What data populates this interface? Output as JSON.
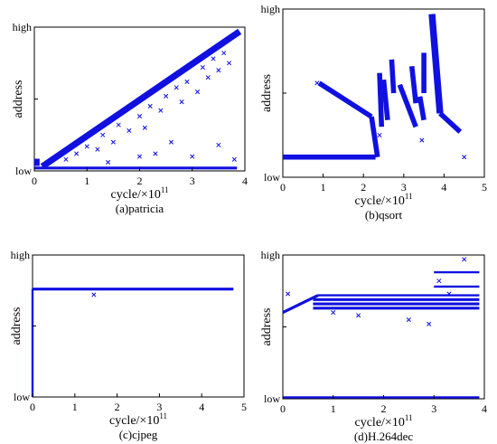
{
  "chart_data": [
    {
      "type": "scatter",
      "caption": "(a)patricia",
      "xlabel": "cycle/×10",
      "xlabel_exponent": "11",
      "ylabel": "address",
      "y_tick_labels": [
        "low",
        "high"
      ],
      "x_ticks": [
        "0",
        "1",
        "2",
        "3",
        "4"
      ],
      "xlim": [
        0,
        4
      ],
      "ylim": [
        0,
        1
      ],
      "grid": false,
      "marker": "x",
      "color": "#1010e0",
      "segments": [
        {
          "x": [
            0.0,
            3.85
          ],
          "y": [
            0.02,
            0.02
          ],
          "width": 0.02
        },
        {
          "x": [
            0.15,
            3.9
          ],
          "y": [
            0.03,
            0.97
          ],
          "width": 0.045
        },
        {
          "x": [
            0.0,
            0.1
          ],
          "y": [
            0.06,
            0.06
          ],
          "width": 0.05
        }
      ],
      "points": [
        {
          "x": 0.6,
          "y": 0.08
        },
        {
          "x": 0.8,
          "y": 0.12
        },
        {
          "x": 1.0,
          "y": 0.17
        },
        {
          "x": 1.2,
          "y": 0.15
        },
        {
          "x": 1.3,
          "y": 0.25
        },
        {
          "x": 1.5,
          "y": 0.2
        },
        {
          "x": 1.6,
          "y": 0.32
        },
        {
          "x": 1.8,
          "y": 0.28
        },
        {
          "x": 2.0,
          "y": 0.38
        },
        {
          "x": 2.1,
          "y": 0.3
        },
        {
          "x": 2.2,
          "y": 0.45
        },
        {
          "x": 2.3,
          "y": 0.12
        },
        {
          "x": 2.4,
          "y": 0.42
        },
        {
          "x": 2.5,
          "y": 0.52
        },
        {
          "x": 2.6,
          "y": 0.2
        },
        {
          "x": 2.7,
          "y": 0.58
        },
        {
          "x": 2.8,
          "y": 0.48
        },
        {
          "x": 2.9,
          "y": 0.62
        },
        {
          "x": 3.0,
          "y": 0.1
        },
        {
          "x": 3.1,
          "y": 0.55
        },
        {
          "x": 3.2,
          "y": 0.72
        },
        {
          "x": 3.3,
          "y": 0.65
        },
        {
          "x": 3.4,
          "y": 0.78
        },
        {
          "x": 3.5,
          "y": 0.7
        },
        {
          "x": 3.6,
          "y": 0.82
        },
        {
          "x": 3.7,
          "y": 0.75
        },
        {
          "x": 3.5,
          "y": 0.18
        },
        {
          "x": 2.0,
          "y": 0.1
        },
        {
          "x": 1.4,
          "y": 0.06
        },
        {
          "x": 3.8,
          "y": 0.08
        }
      ]
    },
    {
      "type": "scatter",
      "caption": "(b)qsort",
      "xlabel": "cycle/×10",
      "xlabel_exponent": "11",
      "ylabel": "address",
      "y_tick_labels": [
        "low",
        "high"
      ],
      "x_ticks": [
        "0",
        "1",
        "2",
        "3",
        "4",
        "5"
      ],
      "xlim": [
        0,
        5
      ],
      "ylim": [
        0,
        1
      ],
      "grid": false,
      "marker": "x",
      "color": "#1010e0",
      "segments": [
        {
          "x": [
            0.0,
            2.3
          ],
          "y": [
            0.12,
            0.12
          ],
          "width": 0.03
        },
        {
          "x": [
            0.9,
            2.2
          ],
          "y": [
            0.56,
            0.36
          ],
          "width": 0.03
        },
        {
          "x": [
            2.2,
            2.35
          ],
          "y": [
            0.36,
            0.12
          ],
          "width": 0.03
        },
        {
          "x": [
            2.4,
            2.45
          ],
          "y": [
            0.62,
            0.3
          ],
          "width": 0.03
        },
        {
          "x": [
            2.5,
            2.6
          ],
          "y": [
            0.58,
            0.34
          ],
          "width": 0.03
        },
        {
          "x": [
            2.7,
            2.75
          ],
          "y": [
            0.7,
            0.5
          ],
          "width": 0.03
        },
        {
          "x": [
            2.9,
            3.3
          ],
          "y": [
            0.55,
            0.3
          ],
          "width": 0.03
        },
        {
          "x": [
            3.2,
            3.3
          ],
          "y": [
            0.66,
            0.44
          ],
          "width": 0.03
        },
        {
          "x": [
            3.5,
            3.5
          ],
          "y": [
            0.74,
            0.5
          ],
          "width": 0.03
        },
        {
          "x": [
            3.7,
            3.9
          ],
          "y": [
            0.97,
            0.38
          ],
          "width": 0.04
        },
        {
          "x": [
            3.9,
            4.4
          ],
          "y": [
            0.38,
            0.27
          ],
          "width": 0.03
        },
        {
          "x": [
            3.4,
            3.5
          ],
          "y": [
            0.48,
            0.34
          ],
          "width": 0.03
        }
      ],
      "points": [
        {
          "x": 0.85,
          "y": 0.56
        },
        {
          "x": 2.4,
          "y": 0.25
        },
        {
          "x": 3.45,
          "y": 0.22
        },
        {
          "x": 4.5,
          "y": 0.12
        },
        {
          "x": 2.0,
          "y": 0.12
        }
      ]
    },
    {
      "type": "scatter",
      "caption": "(c)cjpeg",
      "xlabel": "cycle/×10",
      "xlabel_exponent": "11",
      "ylabel": "address",
      "y_tick_labels": [
        "low",
        "high"
      ],
      "x_ticks": [
        "0",
        "1",
        "2",
        "3",
        "4",
        "5"
      ],
      "xlim": [
        0,
        5
      ],
      "ylim": [
        0,
        1
      ],
      "grid": false,
      "marker": "x",
      "color": "#1010e0",
      "segments": [
        {
          "x": [
            0.0,
            0.0
          ],
          "y": [
            0.0,
            0.76
          ],
          "width": 0.015
        },
        {
          "x": [
            0.0,
            4.75
          ],
          "y": [
            0.76,
            0.76
          ],
          "width": 0.02
        }
      ],
      "points": [
        {
          "x": 1.45,
          "y": 0.72
        }
      ]
    },
    {
      "type": "scatter",
      "caption": "(d)H.264dec",
      "xlabel": "cycle/×10",
      "xlabel_exponent": "11",
      "ylabel": "address",
      "y_tick_labels": [
        "low",
        "high"
      ],
      "x_ticks": [
        "0",
        "1",
        "2",
        "3",
        "4"
      ],
      "xlim": [
        0,
        4
      ],
      "ylim": [
        0,
        1
      ],
      "grid": false,
      "marker": "x",
      "color": "#1010e0",
      "segments": [
        {
          "x": [
            0.0,
            0.7
          ],
          "y": [
            0.6,
            0.72
          ],
          "width": 0.02
        },
        {
          "x": [
            0.7,
            3.9
          ],
          "y": [
            0.72,
            0.72
          ],
          "width": 0.015
        },
        {
          "x": [
            0.6,
            3.9
          ],
          "y": [
            0.69,
            0.69
          ],
          "width": 0.02
        },
        {
          "x": [
            0.6,
            3.9
          ],
          "y": [
            0.66,
            0.66
          ],
          "width": 0.02
        },
        {
          "x": [
            0.6,
            3.9
          ],
          "y": [
            0.63,
            0.63
          ],
          "width": 0.02
        },
        {
          "x": [
            3.0,
            3.9
          ],
          "y": [
            0.88,
            0.88
          ],
          "width": 0.015
        },
        {
          "x": [
            3.0,
            3.9
          ],
          "y": [
            0.78,
            0.78
          ],
          "width": 0.015
        },
        {
          "x": [
            0.0,
            3.9
          ],
          "y": [
            0.01,
            0.01
          ],
          "width": 0.015
        }
      ],
      "points": [
        {
          "x": 0.1,
          "y": 0.73
        },
        {
          "x": 3.1,
          "y": 0.82
        },
        {
          "x": 3.3,
          "y": 0.73
        },
        {
          "x": 3.6,
          "y": 0.97
        },
        {
          "x": 2.9,
          "y": 0.52
        },
        {
          "x": 1.0,
          "y": 0.6
        },
        {
          "x": 1.5,
          "y": 0.58
        },
        {
          "x": 2.5,
          "y": 0.55
        }
      ]
    }
  ]
}
